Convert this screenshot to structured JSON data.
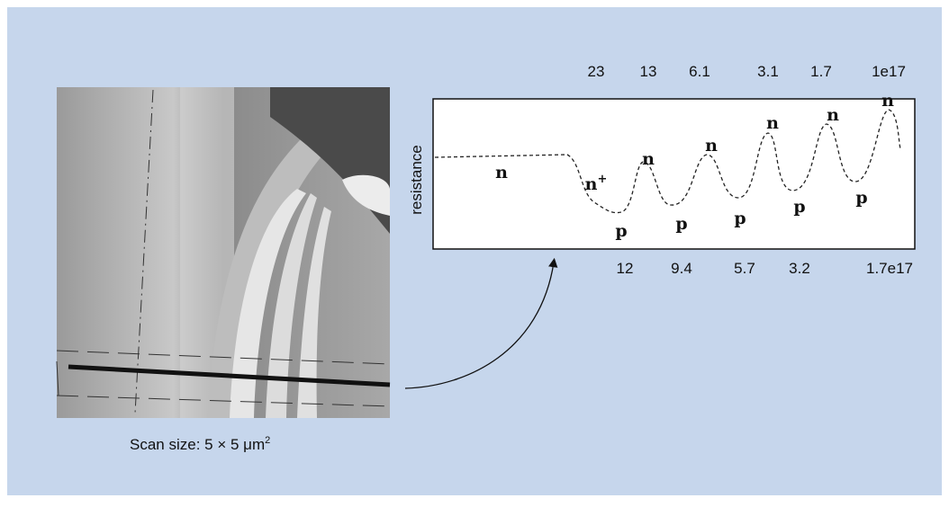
{
  "figure": {
    "image_caption": {
      "text": "Scan size: 5 × 5 μm",
      "superscript": "2"
    },
    "plot": {
      "y_axis_label": "resistance",
      "top_labels": [
        "23",
        "13",
        "6.1",
        "3.1",
        "1.7",
        "1e17"
      ],
      "bottom_labels": [
        "12",
        "9.4",
        "5.7",
        "3.2",
        "1.7e17"
      ],
      "region_labels": [
        {
          "text": "n"
        },
        {
          "text": "n",
          "superscript": "+"
        },
        {
          "text": "p"
        },
        {
          "text": "n"
        },
        {
          "text": "p"
        },
        {
          "text": "n"
        },
        {
          "text": "p"
        },
        {
          "text": "n"
        },
        {
          "text": "p"
        },
        {
          "text": "n"
        },
        {
          "text": "p"
        },
        {
          "text": "n"
        }
      ]
    }
  }
}
